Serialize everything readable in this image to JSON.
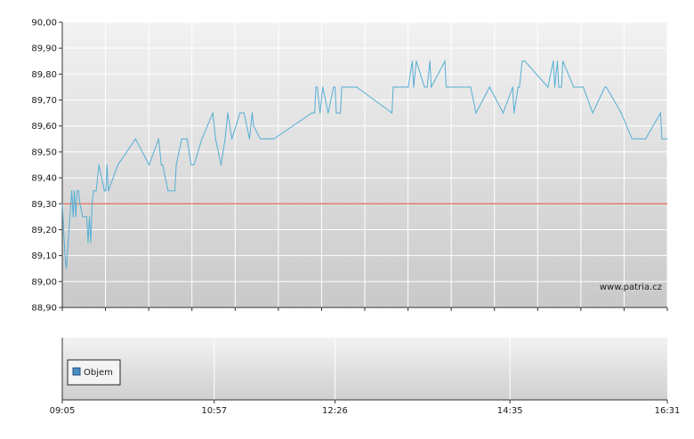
{
  "chart_data": [
    {
      "type": "line",
      "ylim": [
        88.9,
        90.0
      ],
      "yticks": [
        "88,90",
        "89,00",
        "89,10",
        "89,20",
        "89,30",
        "89,40",
        "89,50",
        "89,60",
        "89,70",
        "89,80",
        "89,90",
        "90,00"
      ],
      "reference_line": {
        "value": 89.3,
        "color": "#e06a5a"
      },
      "line_color": "#55aed4",
      "grid": true,
      "watermark": "www.patria.cz",
      "series": [
        {
          "x": [
            "09:05",
            "09:07",
            "09:08",
            "09:10",
            "09:12",
            "09:13",
            "09:14",
            "09:15",
            "09:16",
            "09:17",
            "09:18",
            "09:20",
            "09:23",
            "09:24",
            "09:25",
            "09:26",
            "09:27",
            "09:28",
            "09:30",
            "09:32",
            "09:36",
            "09:37",
            "09:38",
            "09:39",
            "09:46",
            "09:59",
            "10:09",
            "10:16",
            "10:18",
            "10:19",
            "10:23",
            "10:28",
            "10:29",
            "10:33",
            "10:37",
            "10:40",
            "10:42",
            "10:48",
            "10:56",
            "10:58",
            "11:02",
            "11:05",
            "11:07",
            "11:10",
            "11:16",
            "11:19",
            "11:23",
            "11:25",
            "11:26",
            "11:31",
            "11:34",
            "11:36",
            "11:39",
            "11:41",
            "12:09",
            "12:11",
            "12:12",
            "12:13",
            "12:15",
            "12:17",
            "12:21",
            "12:25",
            "12:26",
            "12:27",
            "12:30",
            "12:31",
            "12:33",
            "12:35",
            "12:36",
            "12:37",
            "12:40",
            "12:42",
            "13:08",
            "13:09",
            "13:10",
            "13:12",
            "13:16",
            "13:20",
            "13:23",
            "13:24",
            "13:26",
            "13:32",
            "13:34",
            "13:36",
            "13:37",
            "13:47",
            "13:48",
            "13:49",
            "14:06",
            "14:10",
            "14:20",
            "14:30",
            "14:37",
            "14:38",
            "14:41",
            "14:42",
            "14:44",
            "14:46",
            "15:03",
            "15:07",
            "15:08",
            "15:10",
            "15:11",
            "15:13",
            "15:14",
            "15:22",
            "15:29",
            "15:36",
            "15:45",
            "15:46",
            "15:57",
            "16:05",
            "16:15",
            "16:26",
            "16:27",
            "16:31"
          ],
          "y": [
            89.3,
            89.1,
            89.05,
            89.2,
            89.35,
            89.25,
            89.35,
            89.25,
            89.35,
            89.35,
            89.3,
            89.25,
            89.25,
            89.15,
            89.25,
            89.15,
            89.3,
            89.35,
            89.35,
            89.45,
            89.35,
            89.35,
            89.45,
            89.35,
            89.45,
            89.55,
            89.45,
            89.55,
            89.45,
            89.45,
            89.35,
            89.35,
            89.45,
            89.55,
            89.55,
            89.45,
            89.45,
            89.55,
            89.65,
            89.55,
            89.45,
            89.55,
            89.65,
            89.55,
            89.65,
            89.65,
            89.55,
            89.65,
            89.6,
            89.55,
            89.55,
            89.55,
            89.55,
            89.55,
            89.65,
            89.65,
            89.75,
            89.75,
            89.65,
            89.75,
            89.65,
            89.75,
            89.75,
            89.65,
            89.65,
            89.75,
            89.75,
            89.75,
            89.75,
            89.75,
            89.75,
            89.75,
            89.65,
            89.75,
            89.75,
            89.75,
            89.75,
            89.75,
            89.85,
            89.75,
            89.85,
            89.75,
            89.75,
            89.85,
            89.75,
            89.85,
            89.75,
            89.75,
            89.75,
            89.65,
            89.75,
            89.65,
            89.75,
            89.65,
            89.75,
            89.75,
            89.85,
            89.85,
            89.75,
            89.85,
            89.75,
            89.85,
            89.75,
            89.75,
            89.85,
            89.75,
            89.75,
            89.65,
            89.75,
            89.75,
            89.65,
            89.55,
            89.55,
            89.65,
            89.55,
            89.55
          ]
        }
      ]
    },
    {
      "type": "bar",
      "legend": "Objem",
      "legend_color": "#4a8fc4",
      "xticks": [
        "09:05",
        "10:57",
        "12:26",
        "14:35",
        "16:31"
      ],
      "grid": true,
      "values": []
    }
  ]
}
